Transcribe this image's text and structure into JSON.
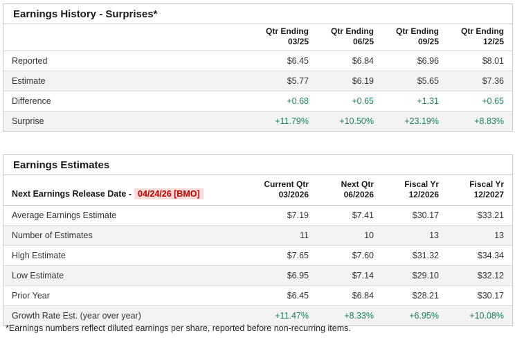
{
  "colors": {
    "positive_green": "#1a8058",
    "release_date_text": "#c00000",
    "release_date_bg": "#fbdcd9",
    "row_alt_bg": "#f3f3f3",
    "panel_border": "#c9c9c9"
  },
  "table1": {
    "title": "Earnings History - Surprises*",
    "columns": [
      {
        "line1": "Qtr Ending",
        "line2": "03/25"
      },
      {
        "line1": "Qtr Ending",
        "line2": "06/25"
      },
      {
        "line1": "Qtr Ending",
        "line2": "09/25"
      },
      {
        "line1": "Qtr Ending",
        "line2": "12/25"
      }
    ],
    "rows": [
      {
        "label": "Reported",
        "values": [
          "$6.45",
          "$6.84",
          "$6.96",
          "$8.01"
        ]
      },
      {
        "label": "Estimate",
        "values": [
          "$5.77",
          "$6.19",
          "$5.65",
          "$7.36"
        ]
      },
      {
        "label": "Difference",
        "values": [
          "+0.68",
          "+0.65",
          "+1.31",
          "+0.65"
        ]
      },
      {
        "label": "Surprise",
        "values": [
          "+11.79%",
          "+10.50%",
          "+23.19%",
          "+8.83%"
        ]
      }
    ]
  },
  "table2": {
    "title": "Earnings Estimates",
    "release_label": "Next Earnings Release Date -",
    "release_date": "04/24/26 [BMO]",
    "columns": [
      {
        "line1": "Current Qtr",
        "line2": "03/2026"
      },
      {
        "line1": "Next Qtr",
        "line2": "06/2026"
      },
      {
        "line1": "Fiscal Yr",
        "line2": "12/2026"
      },
      {
        "line1": "Fiscal Yr",
        "line2": "12/2027"
      }
    ],
    "rows": [
      {
        "label": "Average Earnings Estimate",
        "values": [
          "$7.19",
          "$7.41",
          "$30.17",
          "$33.21"
        ]
      },
      {
        "label": "Number of Estimates",
        "values": [
          "11",
          "10",
          "13",
          "13"
        ]
      },
      {
        "label": "High Estimate",
        "values": [
          "$7.65",
          "$7.60",
          "$31.32",
          "$34.34"
        ]
      },
      {
        "label": "Low Estimate",
        "values": [
          "$6.95",
          "$7.14",
          "$29.10",
          "$32.12"
        ]
      },
      {
        "label": "Prior Year",
        "values": [
          "$6.45",
          "$6.84",
          "$28.21",
          "$30.17"
        ]
      },
      {
        "label": "Growth Rate Est. (year over year)",
        "values": [
          "+11.47%",
          "+8.33%",
          "+6.95%",
          "+10.08%"
        ]
      }
    ]
  },
  "footnote": "*Earnings numbers reflect diluted earnings per share, reported before non-recurring items."
}
